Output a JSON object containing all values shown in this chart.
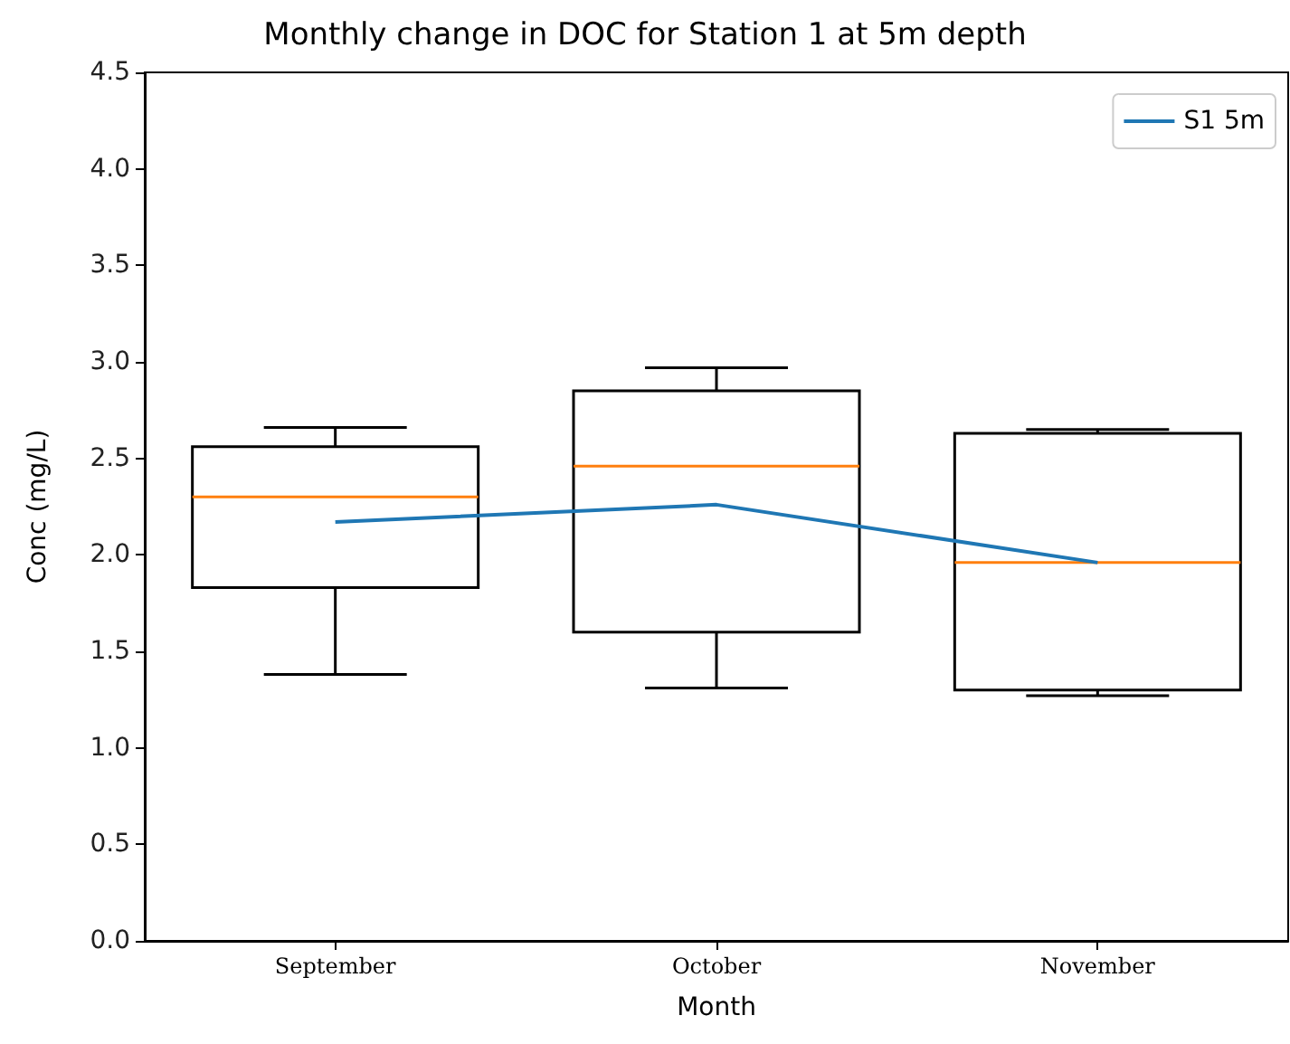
{
  "chart_data": {
    "type": "box",
    "title": "Monthly change in DOC for Station 1 at 5m depth",
    "xlabel": "Month",
    "ylabel": "Conc (mg/L)",
    "categories": [
      "September",
      "October",
      "November"
    ],
    "boxes": [
      {
        "low": 1.38,
        "q1": 1.83,
        "median": 2.3,
        "q3": 2.56,
        "high": 2.66
      },
      {
        "low": 1.31,
        "q1": 1.6,
        "median": 2.46,
        "q3": 2.85,
        "high": 2.97
      },
      {
        "low": 1.27,
        "q1": 1.3,
        "median": 1.96,
        "q3": 2.63,
        "high": 2.65
      }
    ],
    "series": [
      {
        "type": "line",
        "name": "S1 5m",
        "color": "#1f77b4",
        "values": [
          2.17,
          2.26,
          1.96
        ]
      }
    ],
    "ylim": [
      0,
      4.5
    ],
    "yticks": [
      {
        "value": 0,
        "label": "0.0"
      },
      0.5,
      {
        "value": 1,
        "label": "1.0"
      },
      1.5,
      {
        "value": 2,
        "label": "2.0"
      },
      2.5,
      {
        "value": 3,
        "label": "3.0"
      },
      3.5,
      {
        "value": 4,
        "label": "4.0"
      },
      4.5
    ],
    "grid": false,
    "legend": "top right",
    "marker": "none",
    "line_style": "solid"
  }
}
